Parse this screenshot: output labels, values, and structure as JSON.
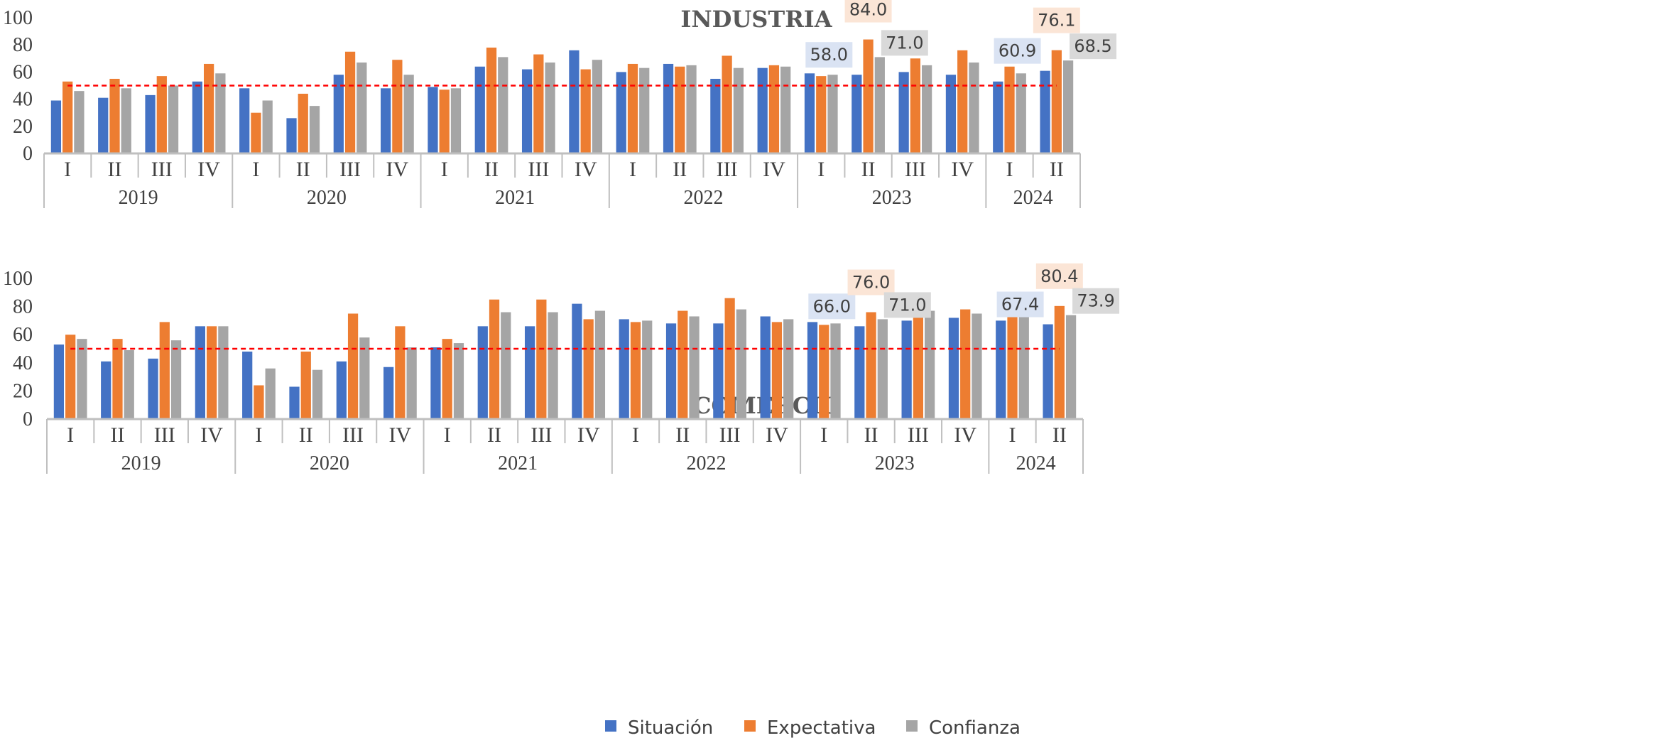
{
  "colors": {
    "situacion": "#4472C4",
    "expectativa": "#ED7D31",
    "confianza": "#A5A5A5",
    "threshold": "#FF0000",
    "axis": "#BFBFBF",
    "label_situacion_bg": "#DAE3F3",
    "label_expectativa_bg": "#FBE5D6",
    "label_confianza_bg": "#D9D9D9"
  },
  "legend": [
    "Situación",
    "Expectativa",
    "Confianza"
  ],
  "chart_data": [
    {
      "type": "bar",
      "title": "INDUSTRIA",
      "ylim": [
        0,
        100
      ],
      "yticks": [
        "0",
        "20",
        "40",
        "60",
        "80",
        "100"
      ],
      "threshold": 50,
      "categories": [
        "I",
        "II",
        "III",
        "IV",
        "I",
        "II",
        "III",
        "IV",
        "I",
        "II",
        "III",
        "IV",
        "I",
        "II",
        "III",
        "IV",
        "I",
        "II",
        "III",
        "IV",
        "I",
        "II"
      ],
      "years": [
        {
          "label": "2019",
          "count": 4
        },
        {
          "label": "2020",
          "count": 4
        },
        {
          "label": "2021",
          "count": 4
        },
        {
          "label": "2022",
          "count": 4
        },
        {
          "label": "2023",
          "count": 4
        },
        {
          "label": "2024",
          "count": 2
        }
      ],
      "series": [
        {
          "name": "Situación",
          "values": [
            39,
            41,
            43,
            53,
            48,
            26,
            58,
            48,
            49,
            64,
            62,
            76,
            60,
            66,
            55,
            63,
            59,
            58.0,
            60,
            58,
            53,
            60.9
          ]
        },
        {
          "name": "Expectativa",
          "values": [
            53,
            55,
            57,
            66,
            30,
            44,
            75,
            69,
            47,
            78,
            73,
            62,
            66,
            64,
            72,
            65,
            57,
            84.0,
            70,
            76,
            64,
            76.1
          ]
        },
        {
          "name": "Confianza",
          "values": [
            46,
            48,
            50,
            59,
            39,
            35,
            67,
            58,
            48,
            71,
            67,
            69,
            63,
            65,
            63,
            64,
            58,
            71.0,
            65,
            67,
            59,
            68.5
          ]
        }
      ],
      "data_labels": [
        {
          "series": 0,
          "index": 17,
          "text": "58.0"
        },
        {
          "series": 1,
          "index": 17,
          "text": "84.0"
        },
        {
          "series": 2,
          "index": 17,
          "text": "71.0"
        },
        {
          "series": 0,
          "index": 21,
          "text": "60.9"
        },
        {
          "series": 1,
          "index": 21,
          "text": "76.1"
        },
        {
          "series": 2,
          "index": 21,
          "text": "68.5"
        }
      ]
    },
    {
      "type": "bar",
      "title": "COMERCIO",
      "ylim": [
        0,
        100
      ],
      "yticks": [
        "0",
        "20",
        "40",
        "60",
        "80",
        "100"
      ],
      "threshold": 50,
      "categories": [
        "I",
        "II",
        "III",
        "IV",
        "I",
        "II",
        "III",
        "IV",
        "I",
        "II",
        "III",
        "IV",
        "I",
        "II",
        "III",
        "IV",
        "I",
        "II",
        "III",
        "IV",
        "I",
        "II"
      ],
      "years": [
        {
          "label": "2019",
          "count": 4
        },
        {
          "label": "2020",
          "count": 4
        },
        {
          "label": "2021",
          "count": 4
        },
        {
          "label": "2022",
          "count": 4
        },
        {
          "label": "2023",
          "count": 4
        },
        {
          "label": "2024",
          "count": 2
        }
      ],
      "series": [
        {
          "name": "Situación",
          "values": [
            53,
            41,
            43,
            66,
            48,
            23,
            41,
            37,
            51,
            66,
            66,
            82,
            71,
            68,
            68,
            73,
            69,
            66.0,
            70,
            72,
            70,
            67.4
          ]
        },
        {
          "name": "Expectativa",
          "values": [
            60,
            57,
            69,
            66,
            24,
            48,
            75,
            66,
            57,
            85,
            85,
            71,
            69,
            77,
            86,
            69,
            67,
            76.0,
            83,
            78,
            76,
            80.4
          ]
        },
        {
          "name": "Confianza",
          "values": [
            57,
            49,
            56,
            66,
            36,
            35,
            58,
            51,
            54,
            76,
            76,
            77,
            70,
            73,
            78,
            71,
            68,
            71.0,
            77,
            75,
            73,
            73.9
          ]
        }
      ],
      "data_labels": [
        {
          "series": 0,
          "index": 17,
          "text": "66.0"
        },
        {
          "series": 1,
          "index": 17,
          "text": "76.0"
        },
        {
          "series": 2,
          "index": 17,
          "text": "71.0"
        },
        {
          "series": 0,
          "index": 21,
          "text": "67.4"
        },
        {
          "series": 1,
          "index": 21,
          "text": "80.4"
        },
        {
          "series": 2,
          "index": 21,
          "text": "73.9"
        }
      ]
    }
  ]
}
